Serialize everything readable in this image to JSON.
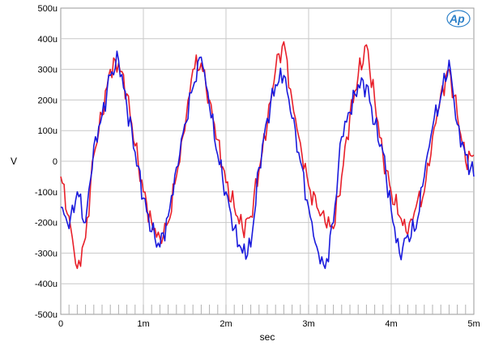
{
  "logo": {
    "text": "Ap",
    "color": "#2a7fc8"
  },
  "chart_data": {
    "type": "line",
    "xlabel": "sec",
    "ylabel": "V",
    "xlim": [
      0,
      0.005
    ],
    "ylim": [
      -0.0005,
      0.0005
    ],
    "x_ticks": [
      {
        "value": 0,
        "label": "0"
      },
      {
        "value": 0.001,
        "label": "1m"
      },
      {
        "value": 0.002,
        "label": "2m"
      },
      {
        "value": 0.003,
        "label": "3m"
      },
      {
        "value": 0.004,
        "label": "4m"
      },
      {
        "value": 0.005,
        "label": "5m"
      }
    ],
    "y_ticks": [
      {
        "value": 0.0005,
        "label": "500u"
      },
      {
        "value": 0.0004,
        "label": "400u"
      },
      {
        "value": 0.0003,
        "label": "300u"
      },
      {
        "value": 0.0002,
        "label": "200u"
      },
      {
        "value": 0.0001,
        "label": "100u"
      },
      {
        "value": 0,
        "label": "0"
      },
      {
        "value": -0.0001,
        "label": "-100u"
      },
      {
        "value": -0.0002,
        "label": "-200u"
      },
      {
        "value": -0.0003,
        "label": "-300u"
      },
      {
        "value": -0.0004,
        "label": "-400u"
      },
      {
        "value": -0.0005,
        "label": "-500u"
      }
    ],
    "grid": true,
    "series": [
      {
        "color": "#e8202a",
        "x": [
          0,
          0.0001,
          0.0002,
          0.0003,
          0.0004,
          0.0005,
          0.0006,
          0.0007,
          0.0008,
          0.0009,
          0.001,
          0.0011,
          0.0012,
          0.0013,
          0.0014,
          0.0015,
          0.0016,
          0.0017,
          0.0018,
          0.0019,
          0.002,
          0.0021,
          0.0022,
          0.0023,
          0.0024,
          0.0025,
          0.0026,
          0.0027,
          0.0028,
          0.0029,
          0.003,
          0.0031,
          0.0032,
          0.0033,
          0.0034,
          0.0035,
          0.0036,
          0.0037,
          0.0038,
          0.0039,
          0.004,
          0.0041,
          0.0042,
          0.0043,
          0.0044,
          0.0045,
          0.0046,
          0.0047,
          0.0048,
          0.0049,
          0.005
        ],
        "y": [
          -5e-05,
          -0.00018,
          -0.00035,
          -0.00025,
          2e-05,
          0.00015,
          0.0003,
          0.00032,
          0.00022,
          5e-05,
          -0.0001,
          -0.0002,
          -0.00025,
          -0.0002,
          -5e-05,
          0.0001,
          0.0003,
          0.00032,
          0.0002,
          7e-05,
          -7e-05,
          -0.00015,
          -0.00022,
          -0.00018,
          -3e-05,
          0.00012,
          0.0003,
          0.00039,
          0.0002,
          6e-05,
          -8e-05,
          -0.00015,
          -0.0002,
          -0.00022,
          -5e-05,
          0.00015,
          0.00028,
          0.00038,
          0.0002,
          2e-05,
          -0.0001,
          -0.00018,
          -0.00024,
          -0.00015,
          -0.0001,
          8e-05,
          0.00022,
          0.0003,
          0.00015,
          0,
          2e-05
        ]
      },
      {
        "color": "#1a1adc",
        "x": [
          0,
          0.0001,
          0.0002,
          0.0003,
          0.0004,
          0.0005,
          0.0006,
          0.0007,
          0.0008,
          0.0009,
          0.001,
          0.0011,
          0.0012,
          0.0013,
          0.0014,
          0.0015,
          0.0016,
          0.0017,
          0.0018,
          0.0019,
          0.002,
          0.0021,
          0.0022,
          0.0023,
          0.0024,
          0.0025,
          0.0026,
          0.0027,
          0.0028,
          0.0029,
          0.003,
          0.0031,
          0.0032,
          0.0033,
          0.0034,
          0.0035,
          0.0036,
          0.0037,
          0.0038,
          0.0039,
          0.004,
          0.0041,
          0.0042,
          0.0043,
          0.0044,
          0.0045,
          0.0046,
          0.0047,
          0.0048,
          0.0049,
          0.005
        ],
        "y": [
          -0.00015,
          -0.00022,
          -0.0001,
          -0.0002,
          5e-05,
          0.00015,
          0.00028,
          0.00033,
          0.00018,
          3e-05,
          -0.00012,
          -0.00023,
          -0.00028,
          -0.00018,
          -2e-05,
          0.00012,
          0.00024,
          0.00034,
          0.00018,
          2e-05,
          -0.0001,
          -0.00022,
          -0.0003,
          -0.00028,
          -2e-05,
          0.00014,
          0.00025,
          0.00028,
          0.00014,
          0,
          -0.00015,
          -0.00028,
          -0.00035,
          -0.0002,
          8e-05,
          0.00016,
          0.00025,
          0.00025,
          0.00012,
          3e-05,
          -0.00016,
          -0.0003,
          -0.00024,
          -0.00022,
          -5e-05,
          0.00011,
          0.00021,
          0.00033,
          0.00012,
          2e-05,
          -5e-05
        ]
      }
    ]
  }
}
